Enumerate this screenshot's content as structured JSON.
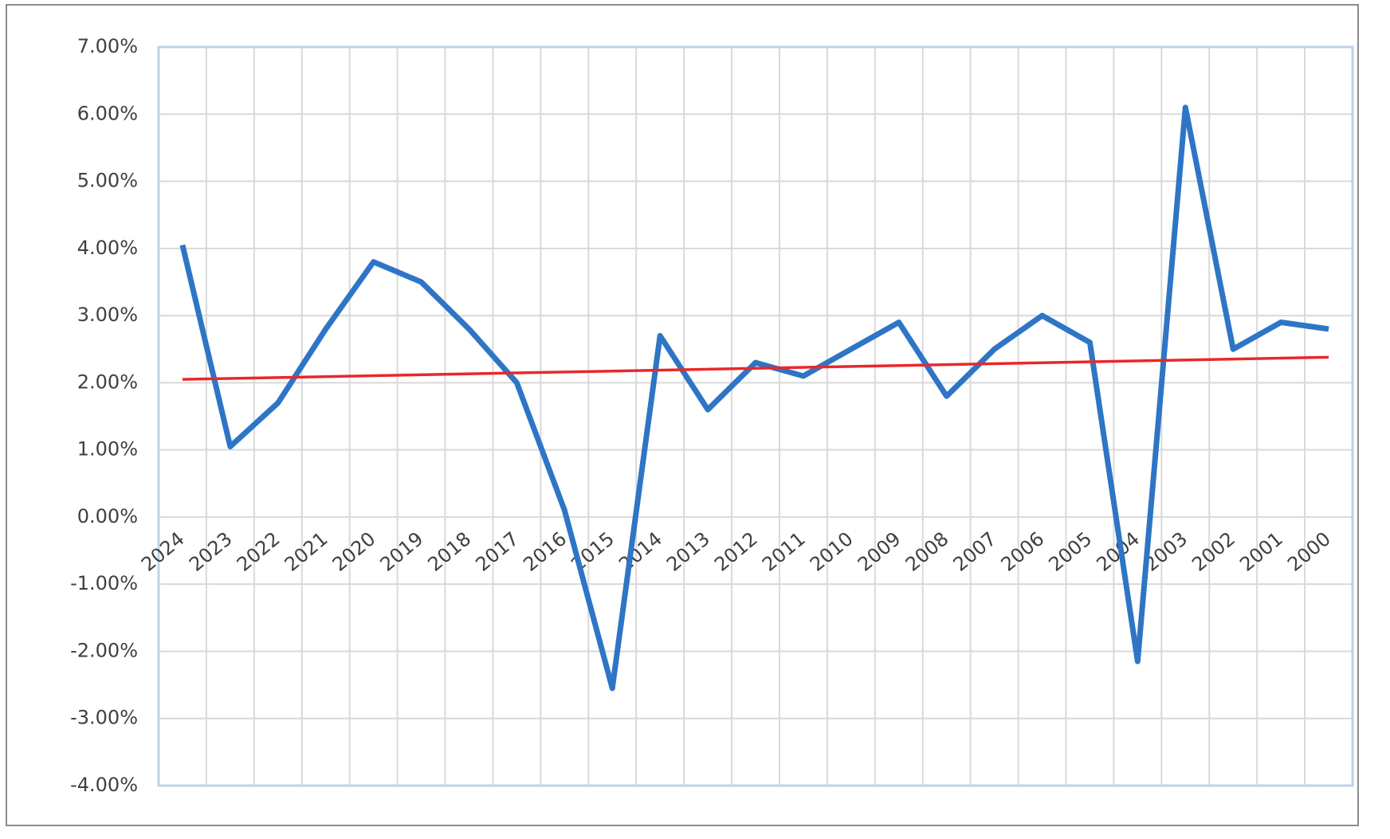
{
  "chart_data": {
    "type": "line",
    "categories": [
      "2024",
      "2023",
      "2022",
      "2021",
      "2020",
      "2019",
      "2018",
      "2017",
      "2016",
      "2015",
      "2014",
      "2013",
      "2012",
      "2011",
      "2010",
      "2009",
      "2008",
      "2007",
      "2006",
      "2005",
      "2004",
      "2003",
      "2002",
      "2001",
      "2000"
    ],
    "series": [
      {
        "color": "#2e75c6",
        "values": [
          4.05,
          1.05,
          1.7,
          2.8,
          3.8,
          3.5,
          2.8,
          2.0,
          0.1,
          -2.55,
          2.7,
          1.6,
          2.3,
          2.1,
          2.5,
          2.9,
          1.8,
          2.5,
          3.0,
          2.6,
          -2.15,
          6.1,
          2.5,
          2.9,
          2.8
        ]
      }
    ],
    "trendline": {
      "color": "#e8282b",
      "values": [
        2.05,
        2.38
      ]
    },
    "ylim": [
      -4,
      7
    ],
    "yticks": [
      {
        "value": -4,
        "label": "-4.00%"
      },
      {
        "value": -3,
        "label": "-3.00%"
      },
      {
        "value": -2,
        "label": "-2.00%"
      },
      {
        "value": -1,
        "label": "-1.00%"
      },
      {
        "value": 0,
        "label": "0.00%"
      },
      {
        "value": 1,
        "label": "1.00%"
      },
      {
        "value": 2,
        "label": "2.00%"
      },
      {
        "value": 3,
        "label": "3.00%"
      },
      {
        "value": 4,
        "label": "4.00%"
      },
      {
        "value": 5,
        "label": "5.00%"
      },
      {
        "value": 6,
        "label": "6.00%"
      },
      {
        "value": 7,
        "label": "7.00%"
      }
    ],
    "grid": true
  }
}
